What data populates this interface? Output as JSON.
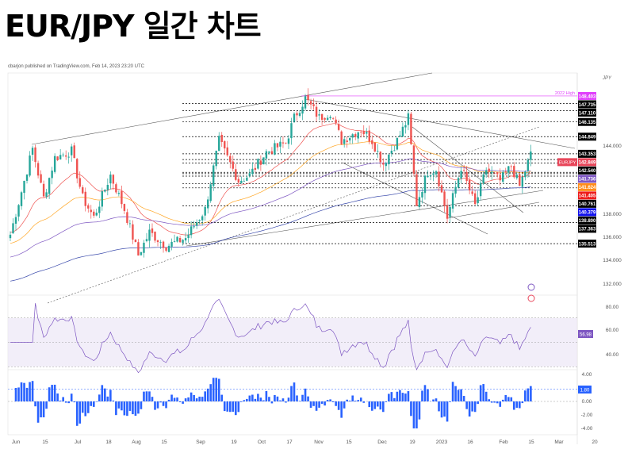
{
  "title": "EUR/JPY 일간 차트",
  "publisher": "cbarjon published on TradingView.com, Feb 14, 2023 23:20 UTC",
  "currency": "JPY",
  "chart_data": {
    "type": "candlestick",
    "symbol": "EURJPY",
    "x_ticks": [
      "Jun",
      "15",
      "Jul",
      "18",
      "Aug",
      "15",
      "Sep",
      "19",
      "Oct",
      "17",
      "Nov",
      "15",
      "Dec",
      "19",
      "2023",
      "16",
      "Feb",
      "15",
      "Mar",
      "20"
    ],
    "price_anchors": [
      [
        -2,
        136.3
      ],
      [
        6,
        143.8
      ],
      [
        10,
        139.5
      ],
      [
        14,
        143.0
      ],
      [
        20,
        143.6
      ],
      [
        24,
        139.5
      ],
      [
        28,
        137.8
      ],
      [
        34,
        141.5
      ],
      [
        39,
        138.5
      ],
      [
        44,
        134.5
      ],
      [
        48,
        136.5
      ],
      [
        54,
        135.3
      ],
      [
        61,
        136.0
      ],
      [
        68,
        138.5
      ],
      [
        73,
        144.5
      ],
      [
        80,
        141.0
      ],
      [
        84,
        141.5
      ],
      [
        90,
        143.5
      ],
      [
        97,
        144.3
      ],
      [
        100,
        146.5
      ],
      [
        104,
        148.2
      ],
      [
        109,
        146.5
      ],
      [
        113,
        147.0
      ],
      [
        117,
        144.5
      ],
      [
        124,
        145.5
      ],
      [
        128,
        144.5
      ],
      [
        132,
        142.5
      ],
      [
        137,
        144.5
      ],
      [
        141,
        146.5
      ],
      [
        144,
        139.0
      ],
      [
        148,
        141.8
      ],
      [
        151,
        142.0
      ],
      [
        155,
        137.8
      ],
      [
        160,
        142.2
      ],
      [
        165,
        138.8
      ],
      [
        169,
        142.0
      ],
      [
        174,
        141.0
      ],
      [
        178,
        142.3
      ],
      [
        181,
        140.5
      ],
      [
        185,
        143.3
      ]
    ],
    "ma_seeds": {
      "red": 136.5,
      "orange": 135.5,
      "purple": 134.3,
      "blue": 132.2
    },
    "price_range": [
      131,
      149.5
    ],
    "price_ticks": [
      "144.000",
      "138.000",
      "136.000",
      "134.000",
      "132.000"
    ],
    "levels": [
      {
        "value": "148.403",
        "price": 148.403,
        "color": "#e040fb",
        "note": "2022 High"
      },
      {
        "value": "147.735",
        "price": 147.735,
        "color": "#000000"
      },
      {
        "value": "147.110",
        "price": 147.11,
        "color": "#000000"
      },
      {
        "value": "146.135",
        "price": 146.135,
        "color": "#000000"
      },
      {
        "value": "144.849",
        "price": 144.849,
        "color": "#000000"
      },
      {
        "value": "143.353",
        "price": 143.353,
        "color": "#000000"
      },
      {
        "value": "142.849",
        "price": 142.849,
        "color": "#e8465a",
        "tag": "EURJPY"
      },
      {
        "value": "142.540",
        "price": 142.54,
        "color": "#000000"
      },
      {
        "value": "141.736",
        "price": 141.736,
        "color": "#7e57c2"
      },
      {
        "value": "141.624",
        "price": 141.624,
        "color": "#ff8c1a"
      },
      {
        "value": "141.405",
        "price": 141.405,
        "color": "#ee1c1c"
      },
      {
        "value": "140.761",
        "price": 140.761,
        "color": "#000000"
      },
      {
        "value": "140.379",
        "price": 140.379,
        "color": "#1111ee"
      },
      {
        "value": "138.800",
        "price": 138.8,
        "color": "#000000"
      },
      {
        "value": "137.363",
        "price": 137.363,
        "color": "#000000"
      },
      {
        "value": "135.513",
        "price": 135.513,
        "color": "#000000"
      }
    ],
    "rsi": {
      "ticks": [
        "80.00",
        "60.00",
        "40.00"
      ],
      "last": "56.98",
      "color": "#7e57c2",
      "band": [
        30,
        70
      ]
    },
    "momentum": {
      "ticks": [
        "4.00",
        "0.00",
        "-2.00",
        "-4.00"
      ],
      "last": "1.80",
      "color": "#2962ff"
    }
  },
  "colors": {
    "up": "#26a69a",
    "down": "#ef5350"
  }
}
